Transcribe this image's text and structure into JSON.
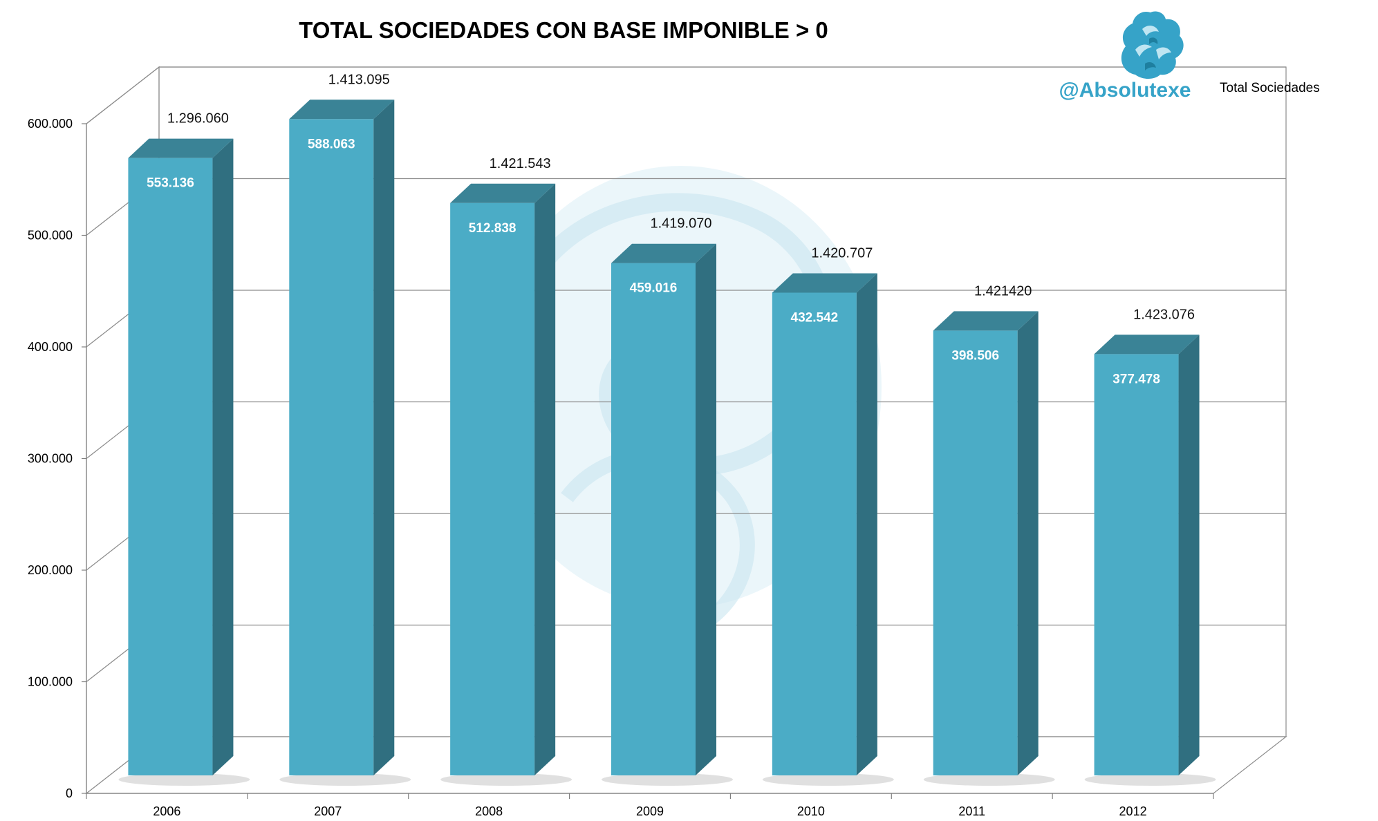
{
  "colors": {
    "bar_front": "#4bacc6",
    "bar_side": "#306f80",
    "bar_top": "#3a8396",
    "brand": "#36a3c8",
    "watermark": "#dbeef5"
  },
  "brand": {
    "handle": "@Absolutexe",
    "logo_icon": "griffin-icon"
  },
  "chart_data": {
    "type": "bar",
    "title": "TOTAL SOCIEDADES CON BASE IMPONIBLE > 0",
    "xlabel": "",
    "ylabel": "",
    "ylim": [
      0,
      600000
    ],
    "yticks": [
      0,
      100000,
      200000,
      300000,
      400000,
      500000,
      600000
    ],
    "ytick_labels": [
      "0",
      "100.000",
      "200.000",
      "300.000",
      "400.000",
      "500.000",
      "600.000"
    ],
    "grid": true,
    "legend": {
      "position": "top-right",
      "entries": [
        "Total Sociedades"
      ]
    },
    "categories": [
      "2006",
      "2007",
      "2008",
      "2009",
      "2010",
      "2011",
      "2012"
    ],
    "series": [
      {
        "values": [
          553136,
          588063,
          512838,
          459016,
          432542,
          398506,
          377478
        ],
        "data_labels": [
          "553.136",
          "588.063",
          "512.838",
          "459.016",
          "432.542",
          "398.506",
          "377.478"
        ]
      }
    ],
    "annotations": [
      {
        "category": "2006",
        "text": "1.296.060",
        "label": "Total Sociedades"
      },
      {
        "category": "2007",
        "text": "1.413.095",
        "label": "Total Sociedades"
      },
      {
        "category": "2008",
        "text": "1.421.543",
        "label": "Total Sociedades"
      },
      {
        "category": "2009",
        "text": "1.419.070",
        "label": "Total Sociedades"
      },
      {
        "category": "2010",
        "text": "1.420.707",
        "label": "Total Sociedades"
      },
      {
        "category": "2011",
        "text": "1.421420",
        "label": "Total Sociedades"
      },
      {
        "category": "2012",
        "text": "1.423.076",
        "label": "Total Sociedades"
      }
    ]
  }
}
